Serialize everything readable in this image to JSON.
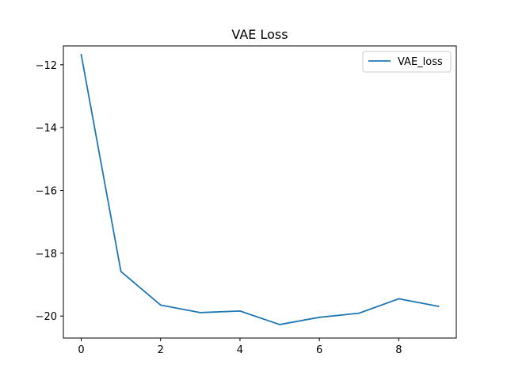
{
  "chart_data": {
    "type": "line",
    "title": "VAE Loss",
    "xlabel": "",
    "ylabel": "",
    "x": [
      0,
      1,
      2,
      3,
      4,
      5,
      6,
      7,
      8,
      9
    ],
    "series": [
      {
        "name": "VAE_loss",
        "color": "#1f77b4",
        "values": [
          -11.68,
          -18.58,
          -19.65,
          -19.89,
          -19.84,
          -20.27,
          -20.04,
          -19.91,
          -19.45,
          -19.69
        ]
      }
    ],
    "xlim": [
      -0.45,
      9.45
    ],
    "ylim": [
      -20.7,
      -11.4
    ],
    "xticks": [
      0,
      2,
      4,
      6,
      8
    ],
    "xtick_labels": [
      "0",
      "2",
      "4",
      "6",
      "8"
    ],
    "yticks": [
      -20,
      -18,
      -16,
      -14,
      -12
    ],
    "ytick_labels": [
      "−20",
      "−18",
      "−16",
      "−14",
      "−12"
    ],
    "grid": false,
    "legend_position": "top-right"
  }
}
